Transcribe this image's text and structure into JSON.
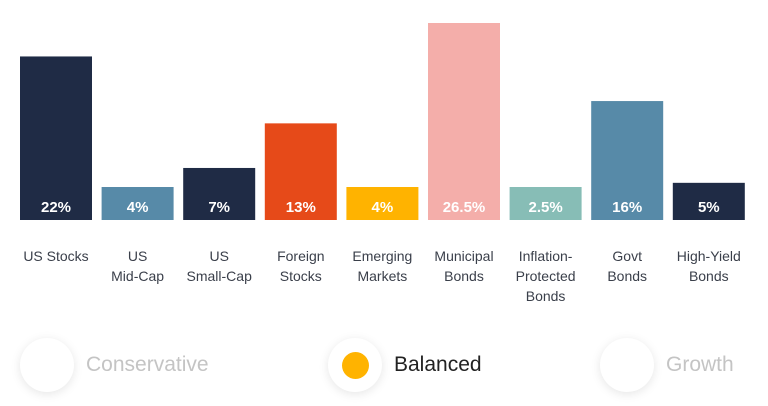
{
  "chart_data": {
    "type": "bar",
    "categories": [
      "US Stocks",
      "US\nMid-Cap",
      "US\nSmall-Cap",
      "Foreign\nStocks",
      "Emerging\nMarkets",
      "Municipal\nBonds",
      "Inflation-\nProtected\nBonds",
      "Govt\nBonds",
      "High-Yield\nBonds"
    ],
    "values": [
      22,
      4,
      7,
      13,
      4,
      26.5,
      2.5,
      16,
      5
    ],
    "labels": [
      "22%",
      "4%",
      "7%",
      "13%",
      "4%",
      "26.5%",
      "2.5%",
      "16%",
      "5%"
    ],
    "colors": [
      "#1f2b45",
      "#578aa8",
      "#1f2b45",
      "#e64a19",
      "#ffb300",
      "#f4aeaa",
      "#87bdb6",
      "#578aa8",
      "#1f2b45"
    ],
    "title": "",
    "xlabel": "",
    "ylabel": "",
    "ylim": [
      0,
      26.5
    ],
    "grid": false
  },
  "options": [
    {
      "label": "Conservative",
      "selected": false
    },
    {
      "label": "Balanced",
      "selected": true
    },
    {
      "label": "Growth",
      "selected": false
    }
  ],
  "accent": "#ffb300"
}
